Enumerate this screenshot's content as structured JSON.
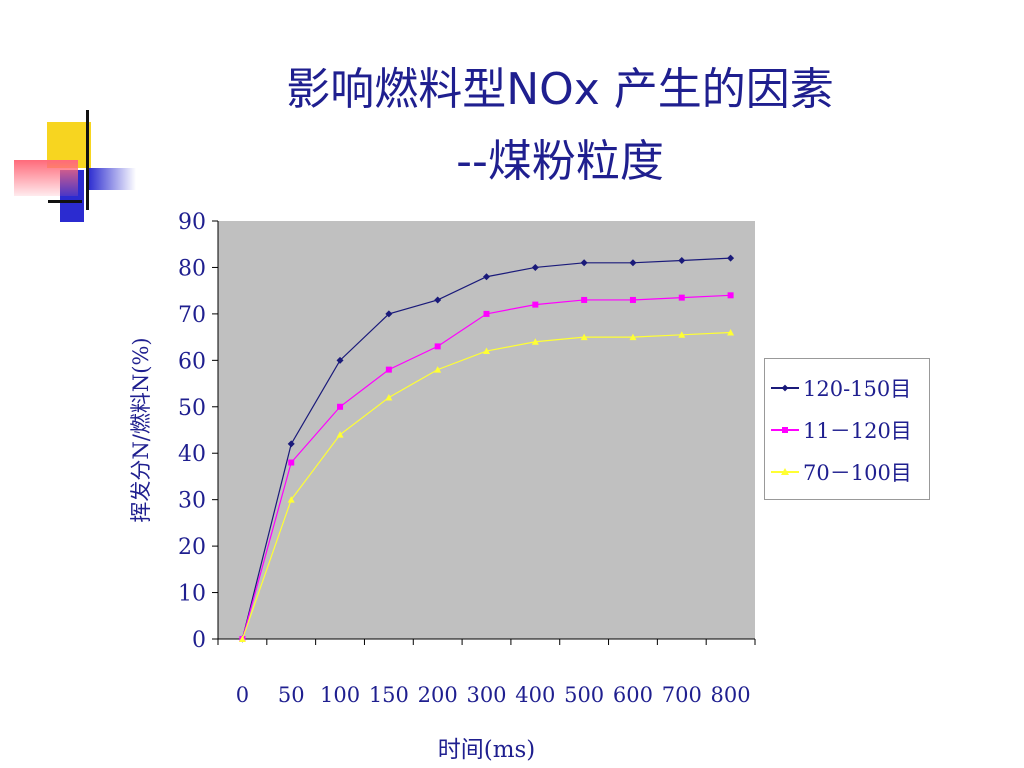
{
  "slide": {
    "title_line1": "影响燃料型NOx 产生的因素",
    "title_line2": "--煤粉粒度"
  },
  "colors": {
    "title": "#1f1f8f",
    "axis_text": "#1f1f8f",
    "plot_bg": "#c0c0c0"
  },
  "chart_data": {
    "type": "line",
    "categories": [
      "0",
      "50",
      "100",
      "150",
      "200",
      "300",
      "400",
      "500",
      "600",
      "700",
      "800"
    ],
    "xlabel": "时间(ms)",
    "ylabel": "挥发分N/燃料N(%)",
    "ylim": [
      0,
      90
    ],
    "yticks": [
      "0",
      "10",
      "20",
      "30",
      "40",
      "50",
      "60",
      "70",
      "80",
      "90"
    ],
    "grid": false,
    "legend_position": "right",
    "series": [
      {
        "name": "120-150目",
        "color": "#1a1a7a",
        "marker": "diamond",
        "values": [
          0,
          42,
          60,
          70,
          73,
          78,
          80,
          81,
          81,
          81.5,
          82
        ]
      },
      {
        "name": "11－120目",
        "color": "#ff00ff",
        "marker": "square",
        "values": [
          0,
          38,
          50,
          58,
          63,
          70,
          72,
          73,
          73,
          73.5,
          74
        ]
      },
      {
        "name": "70－100目",
        "color": "#ffff33",
        "marker": "triangle",
        "values": [
          0,
          30,
          44,
          52,
          58,
          62,
          64,
          65,
          65,
          65.5,
          66
        ]
      }
    ]
  }
}
